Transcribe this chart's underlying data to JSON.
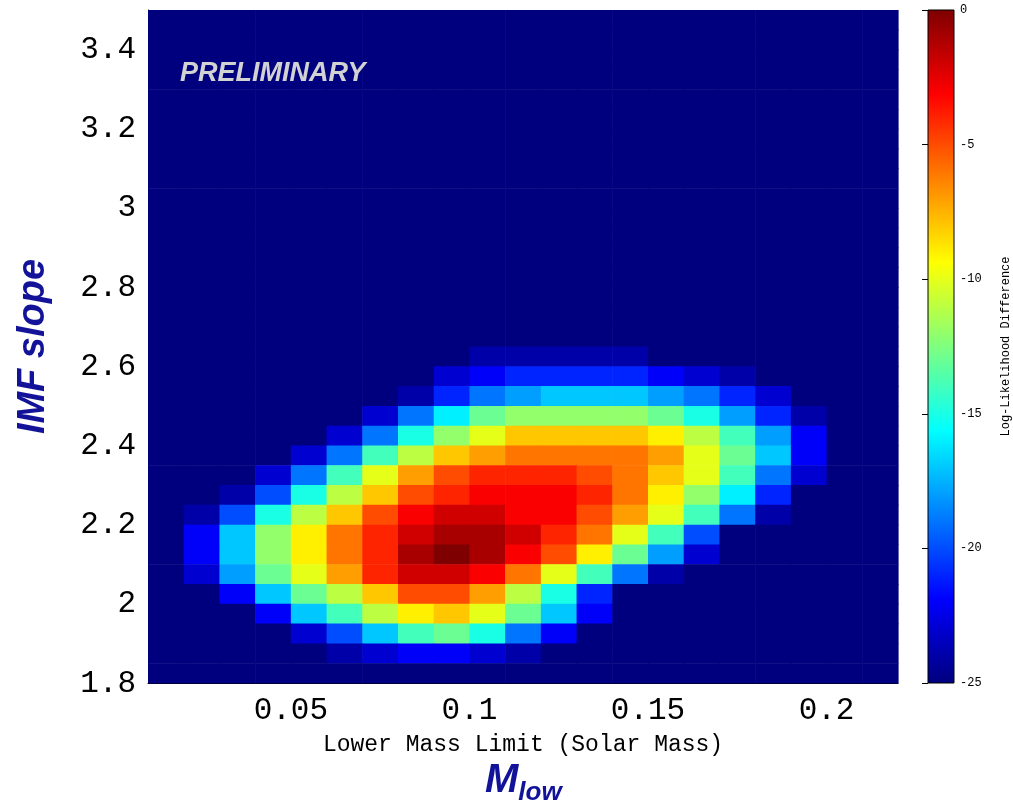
{
  "chart_data": {
    "type": "heatmap",
    "xlabel": "Lower Mass Limit (Solar Mass)",
    "ylabel": "IMF slope",
    "clabel": "Log-Likelihood Difference",
    "annotations": [
      "PRELIMINARY",
      "M$_{low}$"
    ],
    "xlim": [
      0.01,
      0.22
    ],
    "xticks": [
      0.05,
      0.1,
      0.15,
      0.2
    ],
    "ylim": [
      1.8,
      3.5
    ],
    "yticks": [
      1.8,
      2,
      2.2,
      2.4,
      2.6,
      2.8,
      3,
      3.2,
      3.4
    ],
    "clim": [
      -25,
      0
    ],
    "cticks": [
      -25,
      -20,
      -15,
      -10,
      -5,
      0
    ],
    "cells": [
      [
        -25,
        -25,
        -25,
        -25,
        -25,
        -25,
        -25,
        -25,
        -25,
        -25,
        -25,
        -25,
        -25,
        -25,
        -25,
        -25,
        -25,
        -25,
        -25,
        -25,
        -25
      ],
      [
        -25,
        -25,
        -25,
        -25,
        -25,
        -25,
        -25,
        -25,
        -25,
        -25,
        -25,
        -25,
        -25,
        -25,
        -25,
        -25,
        -25,
        -25,
        -25,
        -25,
        -25
      ],
      [
        -25,
        -25,
        -25,
        -25,
        -25,
        -25,
        -25,
        -25,
        -25,
        -25,
        -25,
        -25,
        -25,
        -25,
        -25,
        -25,
        -25,
        -25,
        -25,
        -25,
        -25
      ],
      [
        -25,
        -25,
        -25,
        -25,
        -25,
        -25,
        -25,
        -25,
        -25,
        -25,
        -25,
        -25,
        -25,
        -25,
        -25,
        -25,
        -25,
        -25,
        -25,
        -25,
        -25
      ],
      [
        -25,
        -25,
        -25,
        -25,
        -25,
        -25,
        -25,
        -25,
        -25,
        -25,
        -25,
        -25,
        -25,
        -25,
        -25,
        -25,
        -25,
        -25,
        -25,
        -25,
        -25
      ],
      [
        -25,
        -25,
        -25,
        -25,
        -25,
        -25,
        -25,
        -25,
        -25,
        -25,
        -25,
        -25,
        -25,
        -25,
        -25,
        -25,
        -25,
        -25,
        -25,
        -25,
        -25
      ],
      [
        -25,
        -25,
        -25,
        -25,
        -25,
        -25,
        -25,
        -25,
        -25,
        -25,
        -25,
        -25,
        -25,
        -25,
        -25,
        -25,
        -25,
        -25,
        -25,
        -25,
        -25
      ],
      [
        -25,
        -25,
        -25,
        -25,
        -25,
        -25,
        -25,
        -25,
        -25,
        -25,
        -25,
        -25,
        -25,
        -25,
        -25,
        -25,
        -25,
        -25,
        -25,
        -25,
        -25
      ],
      [
        -25,
        -25,
        -25,
        -25,
        -25,
        -25,
        -25,
        -25,
        -25,
        -25,
        -25,
        -25,
        -25,
        -25,
        -25,
        -25,
        -25,
        -25,
        -25,
        -25,
        -25
      ],
      [
        -25,
        -25,
        -25,
        -25,
        -25,
        -25,
        -25,
        -25,
        -25,
        -25,
        -25,
        -25,
        -25,
        -25,
        -25,
        -25,
        -25,
        -25,
        -25,
        -25,
        -25
      ],
      [
        -25,
        -25,
        -25,
        -25,
        -25,
        -25,
        -25,
        -25,
        -25,
        -25,
        -25,
        -25,
        -25,
        -25,
        -25,
        -25,
        -25,
        -25,
        -25,
        -25,
        -25
      ],
      [
        -25,
        -25,
        -25,
        -25,
        -25,
        -25,
        -25,
        -25,
        -25,
        -25,
        -25,
        -25,
        -25,
        -25,
        -25,
        -25,
        -25,
        -25,
        -25,
        -25,
        -25
      ],
      [
        -25,
        -25,
        -25,
        -25,
        -25,
        -25,
        -25,
        -25,
        -25,
        -25,
        -25,
        -25,
        -25,
        -25,
        -25,
        -25,
        -25,
        -25,
        -25,
        -25,
        -25
      ],
      [
        -25,
        -25,
        -25,
        -25,
        -25,
        -25,
        -25,
        -25,
        -25,
        -25,
        -25,
        -25,
        -25,
        -25,
        -25,
        -25,
        -25,
        -25,
        -25,
        -25,
        -25
      ],
      [
        -25,
        -25,
        -25,
        -25,
        -25,
        -25,
        -25,
        -25,
        -25,
        -25,
        -25,
        -25,
        -25,
        -25,
        -25,
        -25,
        -25,
        -25,
        -25,
        -25,
        -25
      ],
      [
        -25,
        -25,
        -25,
        -25,
        -25,
        -25,
        -25,
        -25,
        -25,
        -25,
        -25,
        -25,
        -25,
        -25,
        -25,
        -25,
        -25,
        -25,
        -25,
        -25,
        -25
      ],
      [
        -25,
        -25,
        -25,
        -25,
        -25,
        -25,
        -25,
        -25,
        -25,
        -25,
        -25,
        -25,
        -25,
        -25,
        -25,
        -25,
        -25,
        -25,
        -25,
        -25,
        -25
      ],
      [
        -25,
        -25,
        -25,
        -25,
        -25,
        -25,
        -25,
        -25,
        -25,
        -24,
        -24,
        -24,
        -24,
        -24,
        -25,
        -25,
        -25,
        -25,
        -25,
        -25,
        -25
      ],
      [
        -25,
        -25,
        -25,
        -25,
        -25,
        -25,
        -25,
        -25,
        -23,
        -22,
        -21,
        -21,
        -21,
        -21,
        -22,
        -23,
        -24,
        -25,
        -25,
        -25,
        -25
      ],
      [
        -25,
        -25,
        -25,
        -25,
        -25,
        -25,
        -25,
        -24,
        -21,
        -19,
        -18,
        -17,
        -17,
        -17,
        -18,
        -19,
        -21,
        -23,
        -25,
        -25,
        -25
      ],
      [
        -25,
        -25,
        -25,
        -25,
        -25,
        -25,
        -23,
        -19,
        -16,
        -13,
        -12,
        -12,
        -12,
        -12,
        -13,
        -15,
        -18,
        -21,
        -24,
        -25,
        -25
      ],
      [
        -25,
        -25,
        -25,
        -25,
        -25,
        -23,
        -19,
        -15,
        -12,
        -10,
        -8,
        -8,
        -8,
        -8,
        -9,
        -11,
        -14,
        -18,
        -22,
        -25,
        -25
      ],
      [
        -25,
        -25,
        -25,
        -25,
        -23,
        -19,
        -14,
        -11,
        -8,
        -7,
        -6,
        -6,
        -6,
        -6,
        -7,
        -10,
        -13,
        -17,
        -22,
        -25,
        -25
      ],
      [
        -25,
        -25,
        -25,
        -23,
        -19,
        -14,
        -10,
        -7,
        -5,
        -4,
        -4,
        -4,
        -5,
        -6,
        -8,
        -10,
        -14,
        -19,
        -23,
        -25,
        -25
      ],
      [
        -25,
        -25,
        -24,
        -20,
        -15,
        -11,
        -8,
        -5,
        -4,
        -3,
        -3,
        -3,
        -4,
        -6,
        -9,
        -12,
        -16,
        -21,
        -25,
        -25,
        -25
      ],
      [
        -25,
        -24,
        -20,
        -15,
        -11,
        -8,
        -5,
        -3,
        -2,
        -2,
        -3,
        -3,
        -5,
        -7,
        -10,
        -14,
        -19,
        -24,
        -25,
        -25,
        -25
      ],
      [
        -25,
        -22,
        -17,
        -12,
        -9,
        -6,
        -4,
        -2,
        -1,
        -1,
        -2,
        -4,
        -6,
        -10,
        -14,
        -20,
        -25,
        -25,
        -25,
        -25,
        -25
      ],
      [
        -25,
        -22,
        -17,
        -12,
        -9,
        -6,
        -4,
        -1,
        0,
        -1,
        -3,
        -5,
        -9,
        -13,
        -18,
        -23,
        -25,
        -25,
        -25,
        -25,
        -25
      ],
      [
        -25,
        -23,
        -18,
        -13,
        -10,
        -7,
        -4,
        -2,
        -2,
        -3,
        -6,
        -10,
        -14,
        -19,
        -24,
        -25,
        -25,
        -25,
        -25,
        -25,
        -25
      ],
      [
        -25,
        -25,
        -22,
        -17,
        -13,
        -11,
        -8,
        -5,
        -5,
        -7,
        -11,
        -15,
        -21,
        -25,
        -25,
        -25,
        -25,
        -25,
        -25,
        -25,
        -25
      ],
      [
        -25,
        -25,
        -25,
        -22,
        -17,
        -14,
        -11,
        -9,
        -8,
        -10,
        -13,
        -17,
        -22,
        -25,
        -25,
        -25,
        -25,
        -25,
        -25,
        -25,
        -25
      ],
      [
        -25,
        -25,
        -25,
        -25,
        -23,
        -20,
        -17,
        -14,
        -13,
        -15,
        -19,
        -22,
        -25,
        -25,
        -25,
        -25,
        -25,
        -25,
        -25,
        -25,
        -25
      ],
      [
        -25,
        -25,
        -25,
        -25,
        -25,
        -24,
        -23,
        -22,
        -22,
        -23,
        -24,
        -25,
        -25,
        -25,
        -25,
        -25,
        -25,
        -25,
        -25,
        -25,
        -25
      ],
      [
        -25,
        -25,
        -25,
        -25,
        -25,
        -25,
        -25,
        -25,
        -25,
        -25,
        -25,
        -25,
        -25,
        -25,
        -25,
        -25,
        -25,
        -25,
        -25,
        -25,
        -25
      ]
    ]
  }
}
